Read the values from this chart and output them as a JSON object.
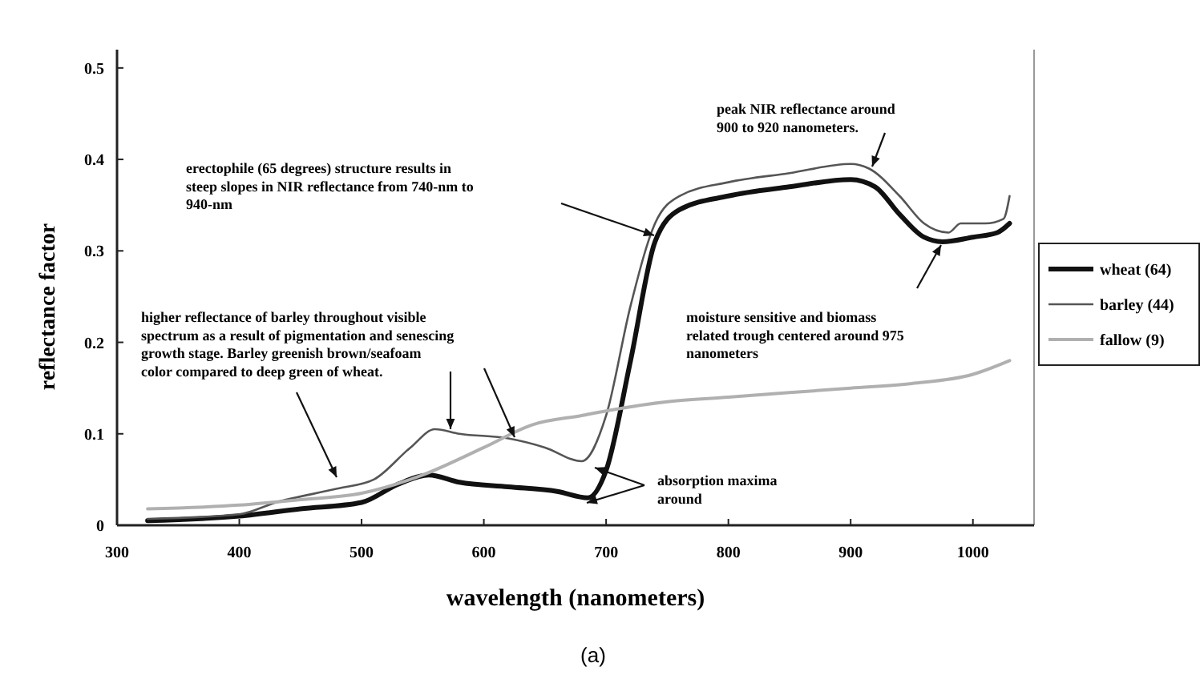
{
  "chart_data": {
    "type": "line",
    "xlabel": "wavelength (nanometers)",
    "ylabel": "reflectance factor",
    "xlim": [
      300,
      1050
    ],
    "ylim": [
      0,
      0.52
    ],
    "xticks": [
      300,
      400,
      500,
      600,
      700,
      800,
      900,
      1000
    ],
    "yticks": [
      0,
      0.1,
      0.2,
      0.3,
      0.4,
      0.5
    ],
    "legend": "right",
    "grid": false,
    "series": [
      {
        "name": "wheat (64)",
        "color": "#111111",
        "x": [
          325,
          400,
          450,
          500,
          530,
          555,
          580,
          620,
          660,
          685,
          700,
          720,
          740,
          760,
          800,
          850,
          900,
          920,
          940,
          960,
          975,
          1000,
          1020,
          1030
        ],
        "values": [
          0.005,
          0.01,
          0.018,
          0.025,
          0.045,
          0.055,
          0.047,
          0.042,
          0.037,
          0.03,
          0.06,
          0.18,
          0.31,
          0.345,
          0.36,
          0.37,
          0.378,
          0.37,
          0.34,
          0.315,
          0.31,
          0.315,
          0.32,
          0.33
        ]
      },
      {
        "name": "barley (44)",
        "color": "#555555",
        "x": [
          325,
          400,
          430,
          480,
          510,
          540,
          560,
          580,
          620,
          650,
          680,
          700,
          720,
          740,
          760,
          800,
          850,
          900,
          915,
          940,
          960,
          980,
          990,
          1010,
          1025,
          1030
        ],
        "values": [
          0.007,
          0.012,
          0.025,
          0.04,
          0.05,
          0.085,
          0.105,
          0.1,
          0.095,
          0.085,
          0.07,
          0.12,
          0.24,
          0.33,
          0.36,
          0.375,
          0.385,
          0.395,
          0.39,
          0.36,
          0.33,
          0.32,
          0.33,
          0.33,
          0.335,
          0.36
        ]
      },
      {
        "name": "fallow (9)",
        "color": "#b0b0b0",
        "x": [
          325,
          400,
          450,
          500,
          550,
          600,
          640,
          680,
          700,
          750,
          800,
          850,
          900,
          950,
          1000,
          1030
        ],
        "values": [
          0.018,
          0.022,
          0.028,
          0.035,
          0.055,
          0.085,
          0.11,
          0.12,
          0.125,
          0.135,
          0.14,
          0.145,
          0.15,
          0.155,
          0.165,
          0.18
        ]
      }
    ],
    "annotations": [
      "erectophile (65 degrees) structure results in\nsteep slopes in NIR reflectance from 740-nm to\n940-nm",
      "higher reflectance of barley throughout visible\nspectrum as a result of pigmentation and senescing\ngrowth stage. Barley greenish brown/seafoam\ncolor compared to deep green of wheat.",
      "peak NIR reflectance around\n900 to 920 nanometers.",
      "moisture sensitive and biomass\nrelated trough centered around 975\nnanometers",
      "absorption maxima\naround",
      "(a)"
    ]
  }
}
